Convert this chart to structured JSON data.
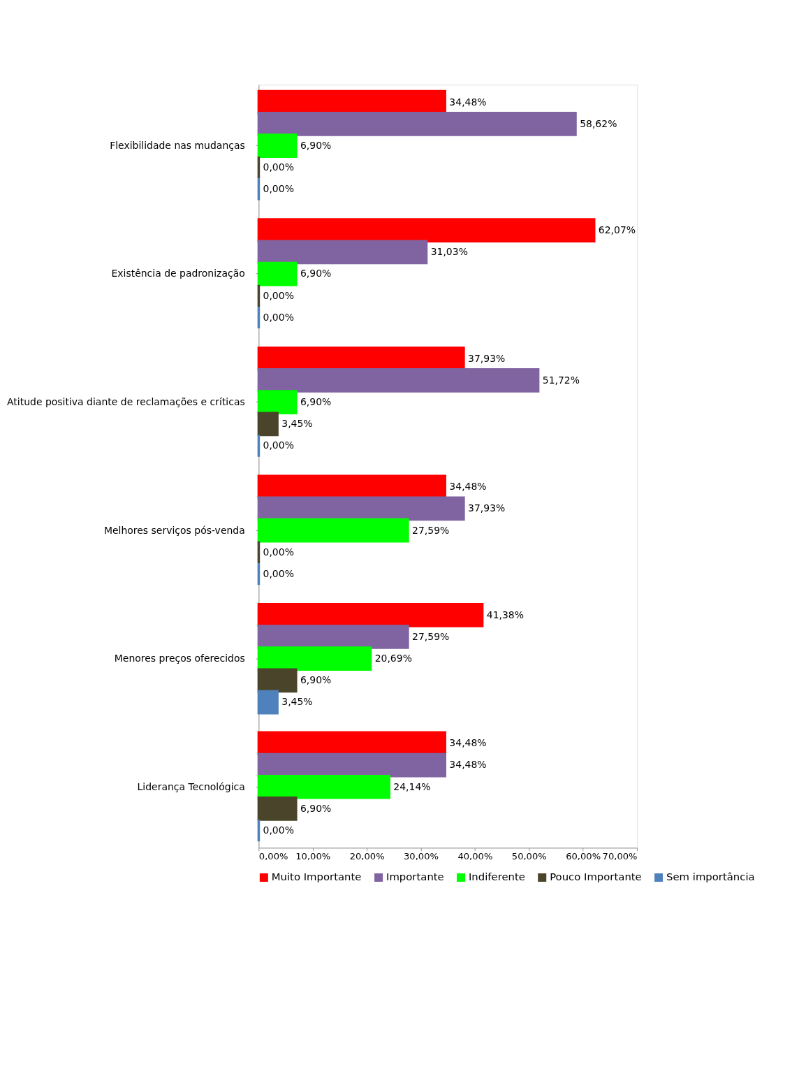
{
  "chart_data": {
    "type": "bar",
    "orientation": "horizontal",
    "categories": [
      "Flexibilidade nas mudanças",
      "Existência de padronização",
      "Atitude positiva diante de reclamações e críticas",
      "Melhores serviços pós-venda",
      "Menores preços oferecidos",
      "Liderança Tecnológica"
    ],
    "series": [
      {
        "name": "Muito Importante",
        "color": "#ff0000",
        "values": [
          34.48,
          62.07,
          37.93,
          34.48,
          41.38,
          34.48
        ],
        "value_labels": [
          "34,48%",
          "62,07%",
          "37,93%",
          "34,48%",
          "41,38%",
          "34,48%"
        ]
      },
      {
        "name": "Importante",
        "color": "#8064a2",
        "values": [
          58.62,
          31.03,
          51.72,
          37.93,
          27.59,
          34.48
        ],
        "value_labels": [
          "58,62%",
          "31,03%",
          "51,72%",
          "37,93%",
          "27,59%",
          "34,48%"
        ]
      },
      {
        "name": "Indiferente",
        "color": "#00ff00",
        "values": [
          6.9,
          6.9,
          6.9,
          27.59,
          20.69,
          24.14
        ],
        "value_labels": [
          "6,90%",
          "6,90%",
          "6,90%",
          "27,59%",
          "20,69%",
          "24,14%"
        ]
      },
      {
        "name": "Pouco Importante",
        "color": "#4a452a",
        "values": [
          0,
          0,
          3.45,
          0,
          6.9,
          6.9
        ],
        "value_labels": [
          "0,00%",
          "0,00%",
          "3,45%",
          "0,00%",
          "6,90%",
          "6,90%"
        ]
      },
      {
        "name": "Sem importância",
        "color": "#4f81bd",
        "values": [
          0,
          0,
          0,
          0,
          3.45,
          0
        ],
        "value_labels": [
          "0,00%",
          "0,00%",
          "0,00%",
          "0,00%",
          "3,45%",
          "0,00%"
        ]
      }
    ],
    "xlim": [
      0,
      70
    ],
    "xticks": [
      {
        "value": 0,
        "label": "0,00%"
      },
      {
        "value": 10,
        "label": "10,00%"
      },
      {
        "value": 20,
        "label": "20,00%"
      },
      {
        "value": 30,
        "label": "30,00%"
      },
      {
        "value": 40,
        "label": "40,00%"
      },
      {
        "value": 50,
        "label": "50,00%"
      },
      {
        "value": 60,
        "label": "60,00%"
      },
      {
        "value": 70,
        "label": "70,00%"
      }
    ],
    "grid": false,
    "legend": "bottom"
  }
}
